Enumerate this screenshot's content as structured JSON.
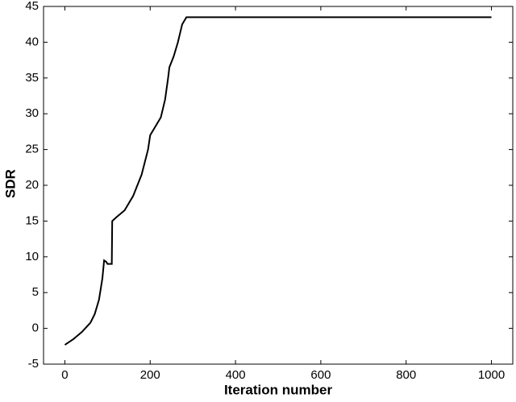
{
  "chart_data": {
    "type": "line",
    "x_label": "Iteration number",
    "y_label": "SDR",
    "x": [
      0,
      20,
      40,
      60,
      70,
      80,
      88,
      92,
      97,
      100,
      110,
      111,
      120,
      140,
      160,
      180,
      195,
      200,
      210,
      225,
      235,
      242,
      245,
      255,
      265,
      275,
      285,
      1000
    ],
    "series": [
      {
        "color": "#000000",
        "values": [
          -2.3,
          -1.5,
          -0.5,
          0.8,
          2,
          4,
          7,
          9.5,
          9.3,
          9,
          9,
          15,
          15.5,
          16.5,
          18.5,
          21.5,
          25,
          27,
          28,
          29.5,
          32,
          35,
          36.5,
          38,
          40,
          42.5,
          43.5,
          43.5
        ]
      }
    ],
    "xlim": [
      -50,
      1050
    ],
    "xticks": [
      0,
      200,
      400,
      600,
      800,
      1000
    ],
    "ylim": [
      -5,
      45
    ],
    "yticks": [
      -5,
      0,
      5,
      10,
      15,
      20,
      25,
      30,
      35,
      40,
      45
    ]
  }
}
